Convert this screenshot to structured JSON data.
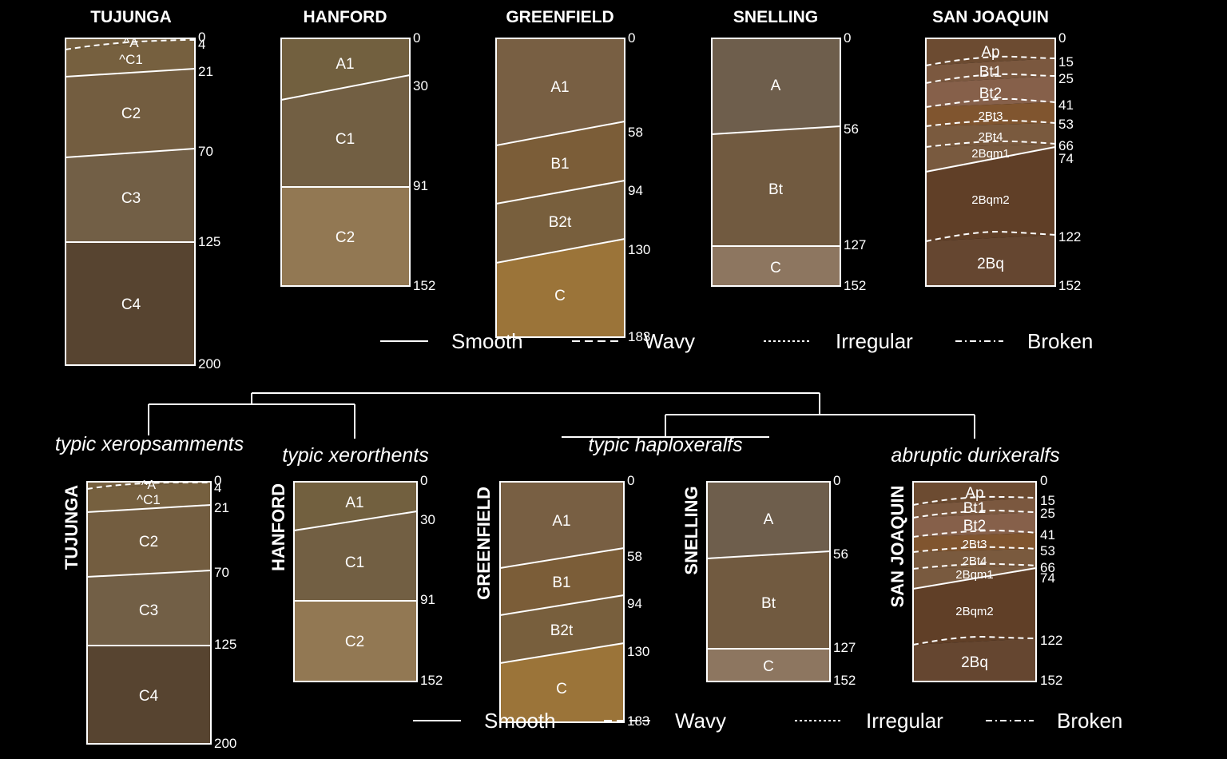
{
  "colors": {
    "background": "#000000",
    "line": "#ffffff",
    "text": "#ffffff"
  },
  "top_panel": {
    "profiles": [
      {
        "id": "tujunga",
        "name": "TUJUNGA",
        "horizons": [
          {
            "label": "^A",
            "top": 0,
            "bottom": 4,
            "color": "#76603f",
            "boundary": "wavy"
          },
          {
            "label": "^C1",
            "top": 4,
            "bottom": 21,
            "color": "#76603f",
            "boundary": "smooth"
          },
          {
            "label": "C2",
            "top": 21,
            "bottom": 70,
            "color": "#735d40",
            "boundary": "smooth"
          },
          {
            "label": "C3",
            "top": 70,
            "bottom": 125,
            "color": "#725f46",
            "boundary": "smooth"
          },
          {
            "label": "C4",
            "top": 125,
            "bottom": 200,
            "color": "#574430",
            "boundary": "none"
          }
        ],
        "depths": [
          "0",
          "4",
          "21",
          "70",
          "125",
          "200"
        ]
      },
      {
        "id": "hanford",
        "name": "HANFORD",
        "horizons": [
          {
            "label": "A1",
            "top": 0,
            "bottom": 30,
            "color": "#72603f",
            "boundary": "smooth"
          },
          {
            "label": "C1",
            "top": 30,
            "bottom": 91,
            "color": "#725f43",
            "boundary": "smooth"
          },
          {
            "label": "C2",
            "top": 91,
            "bottom": 152,
            "color": "#927853",
            "boundary": "none"
          }
        ],
        "depths": [
          "0",
          "30",
          "91",
          "152"
        ]
      },
      {
        "id": "greenfield",
        "name": "GREENFIELD",
        "horizons": [
          {
            "label": "A1",
            "top": 0,
            "bottom": 58,
            "color": "#785f43",
            "boundary": "smooth"
          },
          {
            "label": "B1",
            "top": 58,
            "bottom": 94,
            "color": "#7b5d38",
            "boundary": "smooth"
          },
          {
            "label": "B2t",
            "top": 94,
            "bottom": 130,
            "color": "#785f3d",
            "boundary": "smooth"
          },
          {
            "label": "C",
            "top": 130,
            "bottom": 183,
            "color": "#9b7439",
            "boundary": "none"
          }
        ],
        "depths": [
          "0",
          "58",
          "94",
          "130",
          "183"
        ]
      },
      {
        "id": "snelling",
        "name": "SNELLING",
        "horizons": [
          {
            "label": "A",
            "top": 0,
            "bottom": 56,
            "color": "#6e5e4c",
            "boundary": "smooth"
          },
          {
            "label": "Bt",
            "top": 56,
            "bottom": 127,
            "color": "#715a40",
            "boundary": "smooth"
          },
          {
            "label": "C",
            "top": 127,
            "bottom": 152,
            "color": "#8d7660",
            "boundary": "none"
          }
        ],
        "depths": [
          "0",
          "56",
          "127",
          "152"
        ]
      },
      {
        "id": "sanjoaquin",
        "name": "SAN JOAQUIN",
        "horizons": [
          {
            "label": "Ap",
            "top": 0,
            "bottom": 15,
            "color": "#6c4b31",
            "boundary": "wavy"
          },
          {
            "label": "Bt1",
            "top": 15,
            "bottom": 25,
            "color": "#7b583f",
            "boundary": "wavy"
          },
          {
            "label": "Bt2",
            "top": 25,
            "bottom": 41,
            "color": "#86604a",
            "boundary": "wavy"
          },
          {
            "label": "2Bt3",
            "top": 41,
            "bottom": 53,
            "color": "#80552f",
            "boundary": "wavy"
          },
          {
            "label": "2Bt4",
            "top": 53,
            "bottom": 66,
            "color": "#7a5a3e",
            "boundary": "wavy"
          },
          {
            "label": "2Bqm1",
            "top": 66,
            "bottom": 74,
            "color": "#795a3f",
            "boundary": "smooth"
          },
          {
            "label": "2Bqm2",
            "top": 74,
            "bottom": 122,
            "color": "#603f27",
            "boundary": "wavy"
          },
          {
            "label": "2Bq",
            "top": 122,
            "bottom": 152,
            "color": "#654630",
            "boundary": "none"
          }
        ],
        "depths": [
          "0",
          "15",
          "25",
          "41",
          "53",
          "66",
          "74",
          "122",
          "152"
        ]
      }
    ],
    "legend": [
      "Smooth",
      "Wavy",
      "Irregular",
      "Broken"
    ]
  },
  "bottom_panel": {
    "classifications": [
      "typic xeropsamments",
      "typic xerorthents",
      "typic haploxeralfs",
      "abruptic durixeralfs"
    ],
    "profiles": [
      {
        "id": "tujunga",
        "name": "TUJUNGA",
        "horizons": [
          "^A",
          "^C1",
          "C2",
          "C3",
          "C4"
        ],
        "depths": [
          "0",
          "4",
          "21",
          "70",
          "125",
          "200"
        ]
      },
      {
        "id": "hanford",
        "name": "HANFORD",
        "horizons": [
          "A1",
          "C1",
          "C2"
        ],
        "depths": [
          "0",
          "30",
          "91",
          "152"
        ]
      },
      {
        "id": "greenfield",
        "name": "GREENFIELD",
        "horizons": [
          "A1",
          "B1",
          "B2t",
          "C"
        ],
        "depths": [
          "0",
          "58",
          "94",
          "130",
          "183"
        ]
      },
      {
        "id": "snelling",
        "name": "SNELLING",
        "horizons": [
          "A",
          "Bt",
          "C"
        ],
        "depths": [
          "0",
          "56",
          "127",
          "152"
        ]
      },
      {
        "id": "sanjoaquin",
        "name": "SAN JOAQUIN",
        "horizons": [
          "Ap",
          "Bt1",
          "Bt2",
          "2Bt3",
          "2Bt4",
          "2Bqm1",
          "2Bqm2",
          "2Bq"
        ],
        "depths": [
          "0",
          "15",
          "25",
          "41",
          "53",
          "66",
          "74",
          "122",
          "152"
        ]
      }
    ],
    "legend": [
      "Smooth",
      "Wavy",
      "Irregular",
      "Broken"
    ]
  }
}
